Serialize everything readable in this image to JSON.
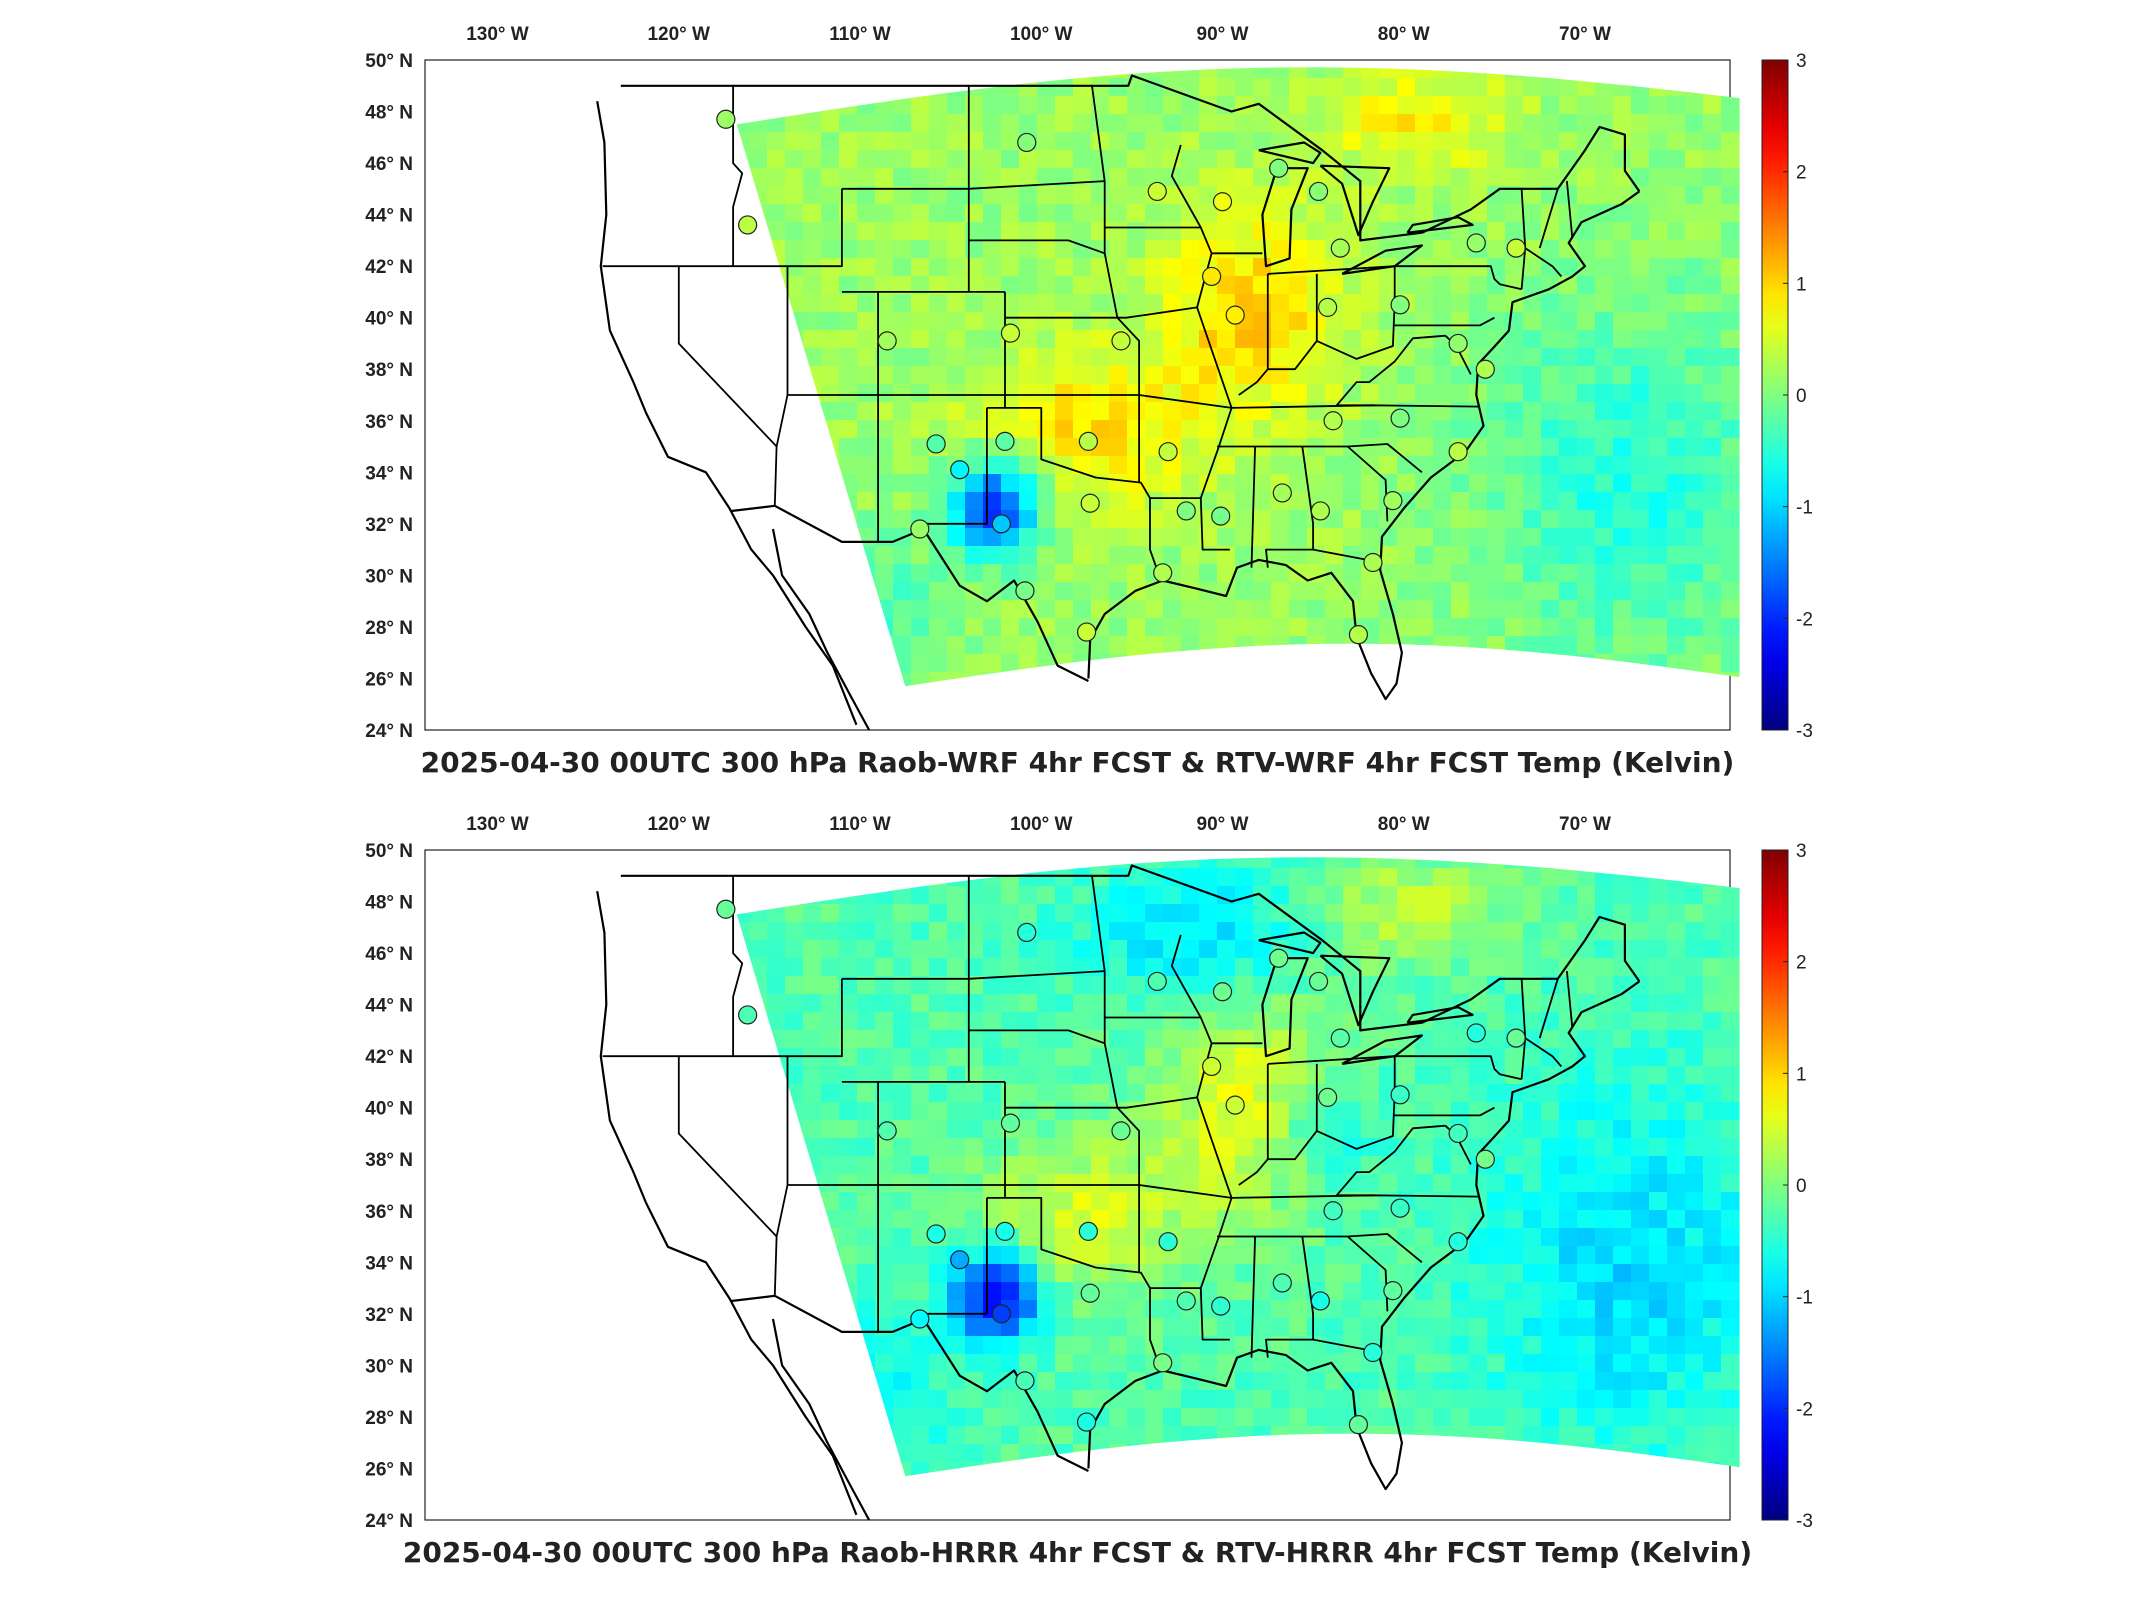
{
  "figure": {
    "lon_ticks": [
      "130° W",
      "120° W",
      "110° W",
      "100° W",
      "90° W",
      "80° W",
      "70° W"
    ],
    "lat_ticks": [
      "50° N",
      "48° N",
      "46° N",
      "44° N",
      "42° N",
      "40° N",
      "38° N",
      "36° N",
      "34° N",
      "32° N",
      "30° N",
      "28° N",
      "26° N",
      "24° N"
    ],
    "colorbar_ticks": [
      "3",
      "2",
      "1",
      "0",
      "-1",
      "-2",
      "-3"
    ],
    "colorbar_range": [
      -3,
      3
    ],
    "colormap": "jet"
  },
  "panels": [
    {
      "title": "2025-04-30 00UTC 300 hPa Raob-WRF 4hr FCST & RTV-WRF 4hr FCST Temp (Kelvin)",
      "field_bias": 0.5
    },
    {
      "title": "2025-04-30 00UTC 300 hPa Raob-HRRR 4hr FCST & RTV-HRRR 4hr FCST Temp (Kelvin)",
      "field_bias": 0.1
    }
  ]
}
